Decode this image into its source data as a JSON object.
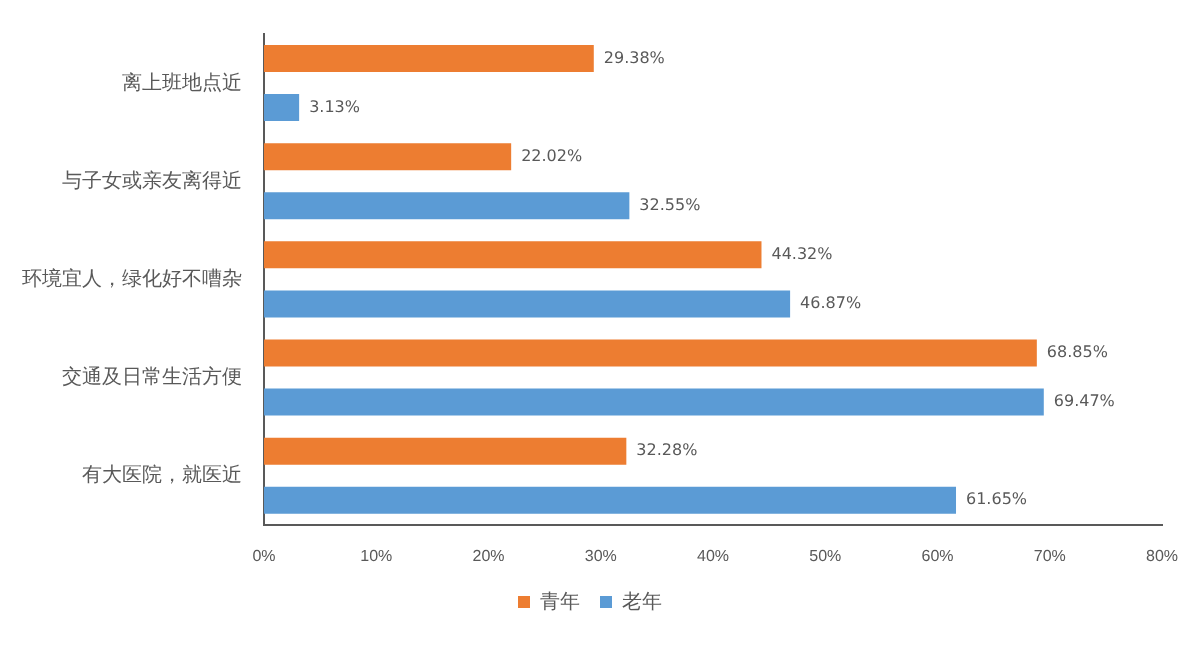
{
  "chart_data": {
    "type": "bar",
    "orientation": "horizontal",
    "categories": [
      "离上班地点近",
      "与子女或亲友离得近",
      "环境宜人，绿化好不嘈杂",
      "交通及日常生活方便",
      "有大医院，就医近"
    ],
    "series": [
      {
        "name": "青年",
        "color": "#ed7d31",
        "values": [
          29.38,
          22.02,
          44.32,
          68.85,
          32.28
        ],
        "value_labels": [
          "29.38%",
          "22.02%",
          "44.32%",
          "68.85%",
          "32.28%"
        ]
      },
      {
        "name": "老年",
        "color": "#5b9bd5",
        "values": [
          3.13,
          32.55,
          46.87,
          69.47,
          61.65
        ],
        "value_labels": [
          "3.13%",
          "32.55%",
          "46.87%",
          "69.47%",
          "61.65%"
        ]
      }
    ],
    "xlim": [
      0,
      80
    ],
    "xticks": [
      {
        "value": 0,
        "label": "0%"
      },
      {
        "value": 10,
        "label": "10%"
      },
      {
        "value": 20,
        "label": "20%"
      },
      {
        "value": 30,
        "label": "30%"
      },
      {
        "value": 40,
        "label": "40%"
      },
      {
        "value": 50,
        "label": "50%"
      },
      {
        "value": 60,
        "label": "60%"
      },
      {
        "value": 70,
        "label": "70%"
      },
      {
        "value": 80,
        "label": "80%"
      }
    ],
    "grid": false,
    "legend": "bottom"
  }
}
